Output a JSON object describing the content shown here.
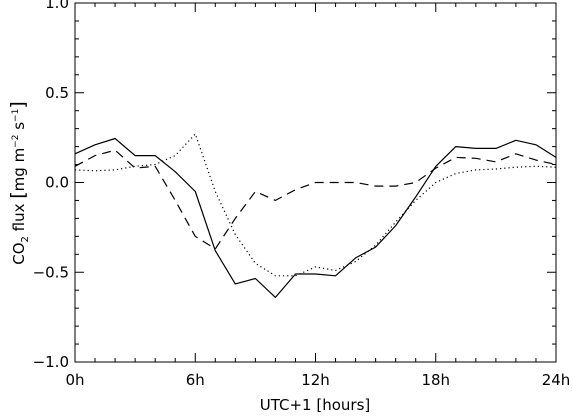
{
  "chart_data": {
    "type": "line",
    "title": "",
    "xlabel": "UTC+1 [hours]",
    "ylabel": {
      "prefix": "CO",
      "subscript": "2",
      "middle": " flux ",
      "bracket_open": "[",
      "unit_mg": "mg m",
      "exp1": "−2",
      "unit_s": " s",
      "exp2": "−1",
      "bracket_close": "]"
    },
    "xlim": [
      0,
      24
    ],
    "ylim": [
      -1.0,
      1.0
    ],
    "grid": false,
    "legend": "none",
    "x_tick_labels": [
      "0h",
      "6h",
      "12h",
      "18h",
      "24h"
    ],
    "y_tick_labels": [
      "−1.0",
      "−0.5",
      "0.0",
      "0.5",
      "1.0"
    ],
    "series": [
      {
        "style": "solid",
        "color": "#000000",
        "x": [
          0,
          1,
          2,
          3,
          4,
          5,
          6,
          7,
          8,
          9,
          10,
          11,
          12,
          13,
          14,
          15,
          16,
          17,
          18,
          19,
          20,
          21,
          22,
          23,
          24
        ],
        "y": [
          0.16,
          0.21,
          0.245,
          0.15,
          0.15,
          0.06,
          -0.05,
          -0.38,
          -0.565,
          -0.535,
          -0.64,
          -0.51,
          -0.51,
          -0.52,
          -0.42,
          -0.36,
          -0.24,
          -0.08,
          0.09,
          0.2,
          0.19,
          0.19,
          0.235,
          0.21,
          0.14
        ]
      },
      {
        "style": "dashed",
        "color": "#000000",
        "x": [
          0,
          1,
          2,
          3,
          4,
          5,
          6,
          7,
          8,
          9,
          10,
          11,
          12,
          13,
          14,
          15,
          16,
          17,
          18,
          19,
          20,
          21,
          22,
          23,
          24
        ],
        "y": [
          0.09,
          0.15,
          0.18,
          0.08,
          0.09,
          -0.1,
          -0.3,
          -0.37,
          -0.2,
          -0.05,
          -0.1,
          -0.04,
          0.0,
          0.0,
          0.0,
          -0.02,
          -0.02,
          0.0,
          0.08,
          0.14,
          0.135,
          0.115,
          0.16,
          0.125,
          0.1
        ]
      },
      {
        "style": "dotted",
        "color": "#000000",
        "x": [
          0,
          1,
          2,
          3,
          4,
          5,
          6,
          7,
          8,
          9,
          10,
          11,
          12,
          13,
          14,
          15,
          16,
          17,
          18,
          19,
          20,
          21,
          22,
          23,
          24
        ],
        "y": [
          0.07,
          0.065,
          0.07,
          0.09,
          0.1,
          0.15,
          0.27,
          -0.05,
          -0.29,
          -0.45,
          -0.52,
          -0.52,
          -0.47,
          -0.49,
          -0.44,
          -0.35,
          -0.22,
          -0.1,
          0.0,
          0.05,
          0.07,
          0.075,
          0.085,
          0.09,
          0.085
        ]
      }
    ]
  }
}
